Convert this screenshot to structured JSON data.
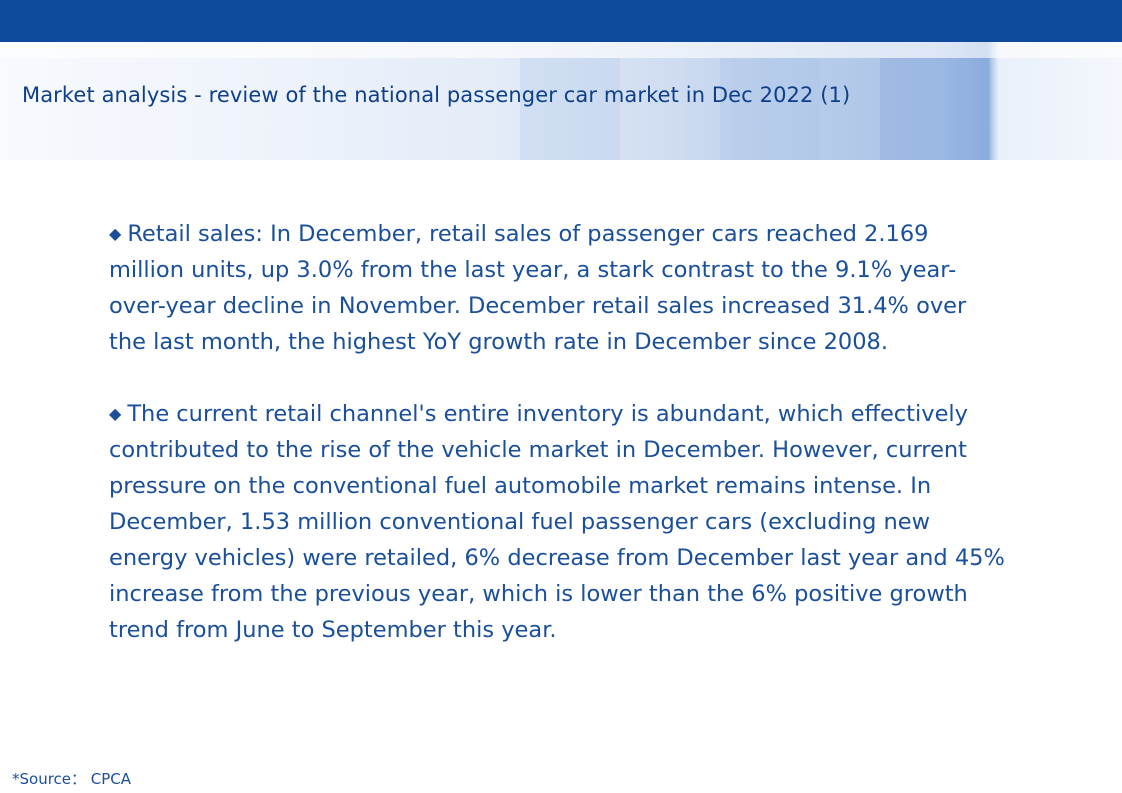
{
  "header": {
    "title": "Market analysis - review of the national passenger car market in Dec 2022 (1)"
  },
  "paragraphs": [
    {
      "bullet": "◆",
      "text": "Retail sales: In December, retail sales of passenger cars reached 2.169 million units, up 3.0% from the last year, a stark contrast to the 9.1% year-over-year decline in November. December retail sales increased 31.4% over the last month, the highest YoY growth rate in December since 2008."
    },
    {
      "bullet": "◆",
      "text": "The current retail channel's entire inventory is abundant, which effectively contributed to the rise of the vehicle market in December. However, current pressure on the conventional fuel automobile market remains intense. In December, 1.53 million conventional fuel passenger cars (excluding new energy vehicles) were retailed,  6% decrease from December last year and  45% increase from the previous year, which is lower than the 6% positive growth trend from June to September this year."
    }
  ],
  "footer": {
    "source": "*Source： CPCA"
  },
  "colors": {
    "top_bar": "#0d4a9c",
    "title_text": "#0d3f8a",
    "body_text": "#1a4f9c"
  }
}
